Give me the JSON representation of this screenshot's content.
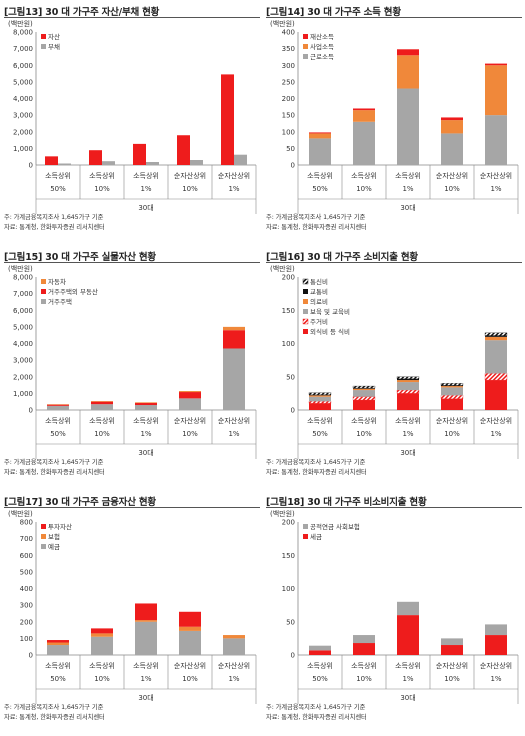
{
  "chart_data": [
    {
      "type": "bar",
      "stacked": false,
      "title": "[그림13]  30 대 가구주 자산/부채 현황",
      "unit_label": "(백만원)",
      "categories": [
        [
          "소득상위",
          "50%"
        ],
        [
          "소득상위",
          "10%"
        ],
        [
          "소득상위",
          "1%"
        ],
        [
          "순자산상위",
          "10%"
        ],
        [
          "순자산상위",
          "1%"
        ]
      ],
      "group_label": "30대",
      "ylim": [
        0,
        8000
      ],
      "yticks": [
        0,
        1000,
        2000,
        3000,
        4000,
        5000,
        6000,
        7000,
        8000
      ],
      "legend_position": "top-left",
      "series": [
        {
          "name": "자산",
          "color": "#ee1c1c",
          "values": [
            520,
            890,
            1270,
            1790,
            5450
          ]
        },
        {
          "name": "부채",
          "color": "#a6a6a6",
          "values": [
            90,
            230,
            180,
            300,
            620
          ]
        }
      ],
      "source_note_1": "주: 가계금융복지조사 1,645가구 기준",
      "source_note_2": "자료: 통계청, 한화투자증권 리서치센터"
    },
    {
      "type": "bar",
      "stacked": true,
      "title": "[그림14]  30 대 가구주 소득 현황",
      "unit_label": "(백만원)",
      "categories": [
        [
          "소득상위",
          "50%"
        ],
        [
          "소득상위",
          "10%"
        ],
        [
          "소득상위",
          "1%"
        ],
        [
          "순자산상위",
          "10%"
        ],
        [
          "순자산상위",
          "1%"
        ]
      ],
      "group_label": "30대",
      "ylim": [
        0,
        400
      ],
      "yticks": [
        0,
        50,
        100,
        150,
        200,
        250,
        300,
        350,
        400
      ],
      "legend_position": "top-left",
      "series": [
        {
          "name": "근로소득",
          "color": "#a6a6a6",
          "values": [
            80,
            130,
            230,
            95,
            150
          ]
        },
        {
          "name": "사업소득",
          "color": "#f0883a",
          "values": [
            15,
            35,
            100,
            40,
            150
          ]
        },
        {
          "name": "재산소득",
          "color": "#ee1c1c",
          "values": [
            3,
            5,
            18,
            8,
            5
          ]
        }
      ],
      "source_note_1": "주: 가계금융복지조사 1,645가구 기준",
      "source_note_2": "자료: 통계청, 한화투자증권 리서치센터"
    },
    {
      "type": "bar",
      "stacked": true,
      "title": "[그림15]  30 대 가구주 실물자산 현황",
      "unit_label": "(백만원)",
      "categories": [
        [
          "소득상위",
          "50%"
        ],
        [
          "소득상위",
          "10%"
        ],
        [
          "소득상위",
          "1%"
        ],
        [
          "순자산상위",
          "10%"
        ],
        [
          "순자산상위",
          "1%"
        ]
      ],
      "group_label": "30대",
      "ylim": [
        0,
        8000
      ],
      "yticks": [
        0,
        1000,
        2000,
        3000,
        4000,
        5000,
        6000,
        7000,
        8000
      ],
      "legend_position": "top-left",
      "series": [
        {
          "name": "거주주택",
          "color": "#a6a6a6",
          "values": [
            250,
            350,
            300,
            700,
            3700
          ]
        },
        {
          "name": "거주주택외 부동산",
          "color": "#ee1c1c",
          "values": [
            70,
            150,
            120,
            380,
            1100
          ]
        },
        {
          "name": "자동차",
          "color": "#f0883a",
          "values": [
            30,
            40,
            40,
            60,
            200
          ]
        }
      ],
      "source_note_1": "주: 가계금융복지조사 1,645가구 기준",
      "source_note_2": "자료: 통계청, 한화투자증권 리서치센터"
    },
    {
      "type": "bar",
      "stacked": true,
      "title": "[그림16]  30 대 가구주 소비지출 현황",
      "unit_label": "(백만원)",
      "categories": [
        [
          "소득상위",
          "50%"
        ],
        [
          "소득상위",
          "10%"
        ],
        [
          "소득상위",
          "1%"
        ],
        [
          "순자산상위",
          "10%"
        ],
        [
          "순자산상위",
          "1%"
        ]
      ],
      "group_label": "30대",
      "ylim": [
        0,
        200
      ],
      "yticks": [
        0,
        50,
        100,
        150,
        200
      ],
      "legend_position": "top-left",
      "series": [
        {
          "name": "외식비 등 식비",
          "color": "#ee1c1c",
          "pattern": "solid",
          "values": [
            10,
            15,
            25,
            17,
            45
          ]
        },
        {
          "name": "주거비",
          "color": "#ee1c1c",
          "pattern": "hatch",
          "values": [
            3,
            5,
            5,
            5,
            10
          ]
        },
        {
          "name": "보육 및 교육비",
          "color": "#a6a6a6",
          "pattern": "solid",
          "values": [
            7,
            10,
            12,
            12,
            50
          ]
        },
        {
          "name": "의료비",
          "color": "#f0883a",
          "pattern": "solid",
          "values": [
            2,
            2,
            3,
            2,
            5
          ]
        },
        {
          "name": "교통비",
          "color": "#111111",
          "pattern": "solid",
          "values": [
            1,
            1,
            2,
            1,
            2
          ]
        },
        {
          "name": "통신비",
          "color": "#111111",
          "pattern": "hatch",
          "values": [
            3,
            3,
            3,
            3,
            4
          ]
        }
      ],
      "source_note_1": "주: 가계금융복지조사 1,645가구 기준",
      "source_note_2": "자료: 통계청, 한화투자증권 리서치센터"
    },
    {
      "type": "bar",
      "stacked": true,
      "title": "[그림17]  30 대 가구주 금융자산 현황",
      "unit_label": "(백만원)",
      "categories": [
        [
          "소득상위",
          "50%"
        ],
        [
          "소득상위",
          "10%"
        ],
        [
          "소득상위",
          "1%"
        ],
        [
          "순자산상위",
          "10%"
        ],
        [
          "순자산상위",
          "1%"
        ]
      ],
      "group_label": "30대",
      "ylim": [
        0,
        800
      ],
      "yticks": [
        0,
        100,
        200,
        300,
        400,
        500,
        600,
        700,
        800
      ],
      "legend_position": "top-left",
      "series": [
        {
          "name": "예금",
          "color": "#a6a6a6",
          "values": [
            60,
            110,
            200,
            145,
            100
          ]
        },
        {
          "name": "보험",
          "color": "#f0883a",
          "values": [
            15,
            20,
            10,
            25,
            20
          ]
        },
        {
          "name": "투자자산",
          "color": "#ee1c1c",
          "values": [
            15,
            30,
            100,
            90,
            0
          ]
        }
      ],
      "source_note_1": "주: 가계금융복지조사 1,645가구 기준",
      "source_note_2": "자료: 통계청, 한화투자증권 리서치센터"
    },
    {
      "type": "bar",
      "stacked": true,
      "title": "[그림18]  30 대 가구주 비소비지출 현황",
      "unit_label": "(백만원)",
      "categories": [
        [
          "소득상위",
          "50%"
        ],
        [
          "소득상위",
          "10%"
        ],
        [
          "소득상위",
          "1%"
        ],
        [
          "순자산상위",
          "10%"
        ],
        [
          "순자산상위",
          "1%"
        ]
      ],
      "group_label": "30대",
      "ylim": [
        0,
        200
      ],
      "yticks": [
        0,
        50,
        100,
        150,
        200
      ],
      "legend_position": "top-left",
      "series": [
        {
          "name": "세금",
          "color": "#ee1c1c",
          "values": [
            7,
            18,
            60,
            15,
            30
          ]
        },
        {
          "name": "공적연금 사회보험",
          "color": "#a6a6a6",
          "values": [
            7,
            12,
            20,
            10,
            16
          ]
        }
      ],
      "source_note_1": "주: 가계금융복지조사 1,645가구 기준",
      "source_note_2": "자료: 통계청, 한화투자증권 리서치센터"
    }
  ]
}
